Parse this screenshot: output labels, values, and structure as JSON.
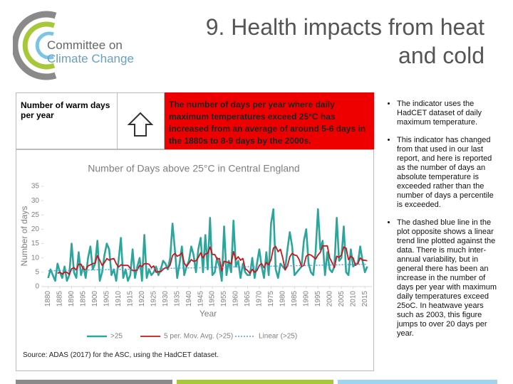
{
  "logo": {
    "line1": "Committee on",
    "line2": "Climate Change"
  },
  "title": "9. Health impacts from heat and cold",
  "indicator": {
    "name": "Number of warm days per year",
    "summary": "The number of days per year where daily maximum temperatures exceed 25°C has increased from an average of around 5-6 days in the 1880s to 8-9 days by the 2000s."
  },
  "source": "Source: ADAS (2017) for the ASC, using the HadCET dataset.",
  "bullets": [
    "The indicator uses the HadCET dataset of daily maximum temperature.",
    "This indicator has changed from that used in our last report, and here is reported as the number of days an absolute temperature is exceeded rather than the number of days a percentile is exceeded.",
    "The dashed blue line in the plot opposite shows a linear trend line plotted against the data. There is much inter-annual variability, but in general there has been an increase in the number of days per year with maximum daily temperatures exceed 25oC. In heatwave years such as 2003, this figure jumps to over 20 days per year."
  ],
  "chart_data": {
    "type": "line",
    "title": "Number of Days above 25°C in Central England",
    "xlabel": "Year",
    "ylabel": "Number of days",
    "x": [
      1880,
      1881,
      1882,
      1883,
      1884,
      1885,
      1886,
      1887,
      1888,
      1889,
      1890,
      1891,
      1892,
      1893,
      1894,
      1895,
      1896,
      1897,
      1898,
      1899,
      1900,
      1901,
      1902,
      1903,
      1904,
      1905,
      1906,
      1907,
      1908,
      1909,
      1910,
      1911,
      1912,
      1913,
      1914,
      1915,
      1916,
      1917,
      1918,
      1919,
      1920,
      1921,
      1922,
      1923,
      1924,
      1925,
      1926,
      1927,
      1928,
      1929,
      1930,
      1931,
      1932,
      1933,
      1934,
      1935,
      1936,
      1937,
      1938,
      1939,
      1940,
      1941,
      1942,
      1943,
      1944,
      1945,
      1946,
      1947,
      1948,
      1949,
      1950,
      1951,
      1952,
      1953,
      1954,
      1955,
      1956,
      1957,
      1958,
      1959,
      1960,
      1961,
      1962,
      1963,
      1964,
      1965,
      1966,
      1967,
      1968,
      1969,
      1970,
      1971,
      1972,
      1973,
      1974,
      1975,
      1976,
      1977,
      1978,
      1979,
      1980,
      1981,
      1982,
      1983,
      1984,
      1985,
      1986,
      1987,
      1988,
      1989,
      1990,
      1991,
      1992,
      1993,
      1994,
      1995,
      1996,
      1997,
      1998,
      1999,
      2000,
      2001,
      2002,
      2003,
      2004,
      2005,
      2006,
      2007,
      2008,
      2009,
      2010,
      2011,
      2012,
      2013,
      2014,
      2015,
      2016
    ],
    "series": [
      {
        "name": ">25",
        "color": "#2ba69c",
        "width": 2.6,
        "values": [
          3,
          6,
          4,
          2,
          8,
          5,
          3,
          7,
          2,
          4,
          15,
          5,
          3,
          12,
          4,
          7,
          3,
          10,
          14,
          6,
          8,
          16,
          2,
          5,
          11,
          15,
          13,
          4,
          6,
          2,
          9,
          17,
          3,
          6,
          2,
          4,
          13,
          3,
          7,
          10,
          2,
          18,
          3,
          6,
          4,
          5,
          7,
          4,
          6,
          9,
          8,
          6,
          10,
          22,
          13,
          3,
          8,
          14,
          4,
          7,
          9,
          14,
          11,
          5,
          13,
          17,
          5,
          18,
          6,
          24,
          4,
          5,
          10,
          7,
          2,
          21,
          4,
          9,
          5,
          23,
          7,
          9,
          3,
          8,
          5,
          4,
          4,
          10,
          3,
          8,
          13,
          7,
          3,
          12,
          4,
          22,
          27,
          6,
          3,
          8,
          7,
          6,
          13,
          19,
          14,
          4,
          5,
          6,
          7,
          16,
          20,
          8,
          5,
          4,
          12,
          27,
          13,
          16,
          4,
          12,
          6,
          5,
          7,
          24,
          9,
          10,
          21,
          5,
          4,
          13,
          7,
          8,
          8,
          14,
          9,
          5,
          7
        ]
      },
      {
        "name": "5 per. Mov. Avg. (>25)",
        "color": "#c8161d",
        "width": 1.8,
        "values": [
          null,
          null,
          null,
          null,
          4.6,
          5.0,
          4.4,
          5.0,
          5.0,
          4.2,
          6.2,
          6.6,
          5.8,
          7.8,
          7.8,
          6.2,
          5.8,
          7.2,
          7.6,
          8.0,
          8.2,
          10.8,
          9.2,
          7.4,
          8.4,
          9.8,
          9.2,
          9.6,
          9.8,
          8.0,
          6.8,
          7.6,
          7.4,
          7.4,
          7.4,
          6.4,
          5.6,
          5.6,
          5.8,
          7.4,
          7.0,
          8.0,
          8.0,
          7.8,
          6.6,
          7.2,
          5.0,
          5.2,
          5.2,
          6.0,
          6.6,
          6.4,
          7.6,
          10.8,
          11.6,
          10.6,
          11.0,
          11.8,
          8.2,
          7.0,
          8.2,
          9.4,
          8.8,
          9.0,
          10.2,
          11.8,
          10.0,
          11.4,
          11.6,
          13.8,
          11.2,
          11.2,
          9.6,
          9.8,
          5.4,
          8.8,
          8.6,
          8.4,
          8.0,
          12.2,
          9.4,
          10.4,
          9.2,
          9.8,
          6.2,
          5.6,
          4.6,
          6.0,
          5.0,
          5.6,
          7.4,
          8.0,
          6.6,
          8.4,
          7.6,
          9.4,
          13.4,
          14.0,
          12.2,
          13.0,
          10.0,
          5.8,
          7.2,
          10.4,
          11.6,
          11.0,
          10.8,
          9.4,
          7.0,
          7.4,
          10.6,
          11.2,
          11.0,
          10.4,
          9.6,
          11.0,
          12.0,
          14.2,
          14.2,
          14.2,
          10.0,
          8.4,
          6.6,
          10.6,
          10.2,
          11.0,
          13.8,
          13.4,
          9.4,
          10.6,
          10.0,
          7.4,
          8.0,
          10.0,
          9.2,
          9.2,
          9.0
        ]
      },
      {
        "name": "Linear (>25)",
        "color": "#5b9bd5",
        "width": 1.5,
        "dash": true,
        "x": [
          1880,
          2016
        ],
        "values": [
          5.5,
          7.8
        ]
      }
    ],
    "xlim": [
      1878,
      2018
    ],
    "xticks": [
      1880,
      1885,
      1890,
      1895,
      1900,
      1905,
      1910,
      1915,
      1920,
      1925,
      1930,
      1935,
      1940,
      1945,
      1950,
      1955,
      1960,
      1965,
      1970,
      1975,
      1980,
      1985,
      1990,
      1995,
      2000,
      2005,
      2010,
      2015
    ],
    "ylim": [
      0,
      35
    ],
    "yticks": [
      0,
      5,
      10,
      15,
      20,
      25,
      30,
      35
    ],
    "grid": false,
    "legend": "bottom"
  }
}
